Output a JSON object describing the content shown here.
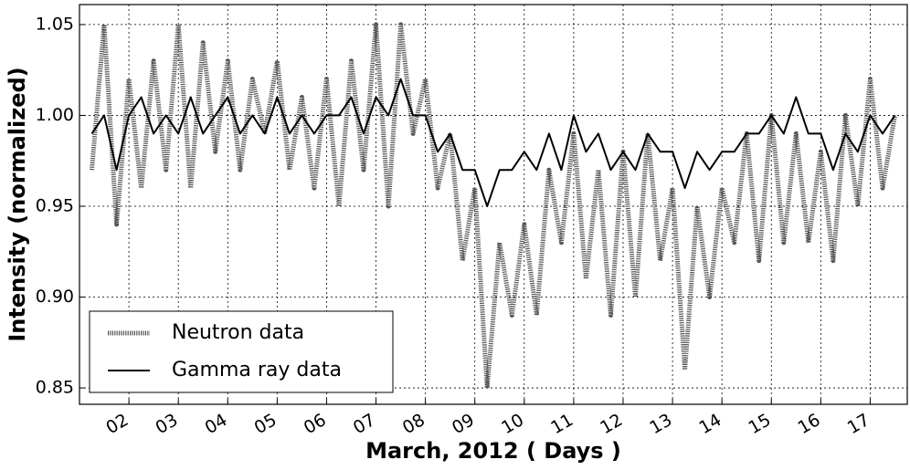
{
  "chart_data": {
    "type": "line",
    "xlabel": "March, 2012 ( Days )",
    "ylabel": "Intensity (normalized)",
    "x": [
      1.25,
      1.5,
      1.75,
      2.0,
      2.25,
      2.5,
      2.75,
      3.0,
      3.25,
      3.5,
      3.75,
      4.0,
      4.25,
      4.5,
      4.75,
      5.0,
      5.25,
      5.5,
      5.75,
      6.0,
      6.25,
      6.5,
      6.75,
      7.0,
      7.25,
      7.5,
      7.75,
      8.0,
      8.25,
      8.5,
      8.75,
      9.0,
      9.25,
      9.5,
      9.75,
      10.0,
      10.25,
      10.5,
      10.75,
      11.0,
      11.25,
      11.5,
      11.75,
      12.0,
      12.25,
      12.5,
      12.75,
      13.0,
      13.25,
      13.5,
      13.75,
      14.0,
      14.25,
      14.5,
      14.75,
      15.0,
      15.25,
      15.5,
      15.75,
      16.0,
      16.25,
      16.5,
      16.75,
      17.0,
      17.25,
      17.5
    ],
    "series": [
      {
        "name": "Neutron data",
        "color": "#555555",
        "linestyle": "dotted",
        "values": [
          0.97,
          1.05,
          0.94,
          1.02,
          0.96,
          1.03,
          0.97,
          1.05,
          0.96,
          1.04,
          0.98,
          1.03,
          0.97,
          1.02,
          0.99,
          1.03,
          0.97,
          1.01,
          0.96,
          1.02,
          0.95,
          1.03,
          0.97,
          1.05,
          0.95,
          1.05,
          0.99,
          1.02,
          0.96,
          0.99,
          0.92,
          0.96,
          0.85,
          0.93,
          0.89,
          0.94,
          0.89,
          0.97,
          0.93,
          0.99,
          0.91,
          0.97,
          0.89,
          0.98,
          0.9,
          0.99,
          0.92,
          0.96,
          0.86,
          0.95,
          0.9,
          0.96,
          0.93,
          0.99,
          0.92,
          1.0,
          0.93,
          0.99,
          0.93,
          0.98,
          0.92,
          1.0,
          0.95,
          1.02,
          0.96,
          1.0
        ]
      },
      {
        "name": "Gamma ray data",
        "color": "#000000",
        "linestyle": "solid",
        "values": [
          0.99,
          1.0,
          0.97,
          1.0,
          1.01,
          0.99,
          1.0,
          0.99,
          1.01,
          0.99,
          1.0,
          1.01,
          0.99,
          1.0,
          0.99,
          1.01,
          0.99,
          1.0,
          0.99,
          1.0,
          1.0,
          1.01,
          0.99,
          1.01,
          1.0,
          1.02,
          1.0,
          1.0,
          0.98,
          0.99,
          0.97,
          0.97,
          0.95,
          0.97,
          0.97,
          0.98,
          0.97,
          0.99,
          0.97,
          1.0,
          0.98,
          0.99,
          0.97,
          0.98,
          0.97,
          0.99,
          0.98,
          0.98,
          0.96,
          0.98,
          0.97,
          0.98,
          0.98,
          0.99,
          0.99,
          1.0,
          0.99,
          1.01,
          0.99,
          0.99,
          0.97,
          0.99,
          0.98,
          1.0,
          0.99,
          1.0
        ]
      }
    ],
    "xlim": [
      1.0,
      17.75
    ],
    "xticks": [
      {
        "value": 2,
        "label": "02"
      },
      {
        "value": 3,
        "label": "03"
      },
      {
        "value": 4,
        "label": "04"
      },
      {
        "value": 5,
        "label": "05"
      },
      {
        "value": 6,
        "label": "06"
      },
      {
        "value": 7,
        "label": "07"
      },
      {
        "value": 8,
        "label": "08"
      },
      {
        "value": 9,
        "label": "09"
      },
      {
        "value": 10,
        "label": "10"
      },
      {
        "value": 11,
        "label": "11"
      },
      {
        "value": 12,
        "label": "12"
      },
      {
        "value": 13,
        "label": "13"
      },
      {
        "value": 14,
        "label": "14"
      },
      {
        "value": 15,
        "label": "15"
      },
      {
        "value": 16,
        "label": "16"
      },
      {
        "value": 17,
        "label": "17"
      }
    ],
    "ylim": [
      0.841,
      1.061
    ],
    "yticks": [
      0.85,
      {
        "value": 0.9,
        "label": "0.90"
      },
      {
        "value": 0.95,
        "label": "0.95"
      },
      {
        "value": 1.0,
        "label": "1.00"
      },
      1.05
    ],
    "grid": true,
    "legend": "lower left"
  }
}
